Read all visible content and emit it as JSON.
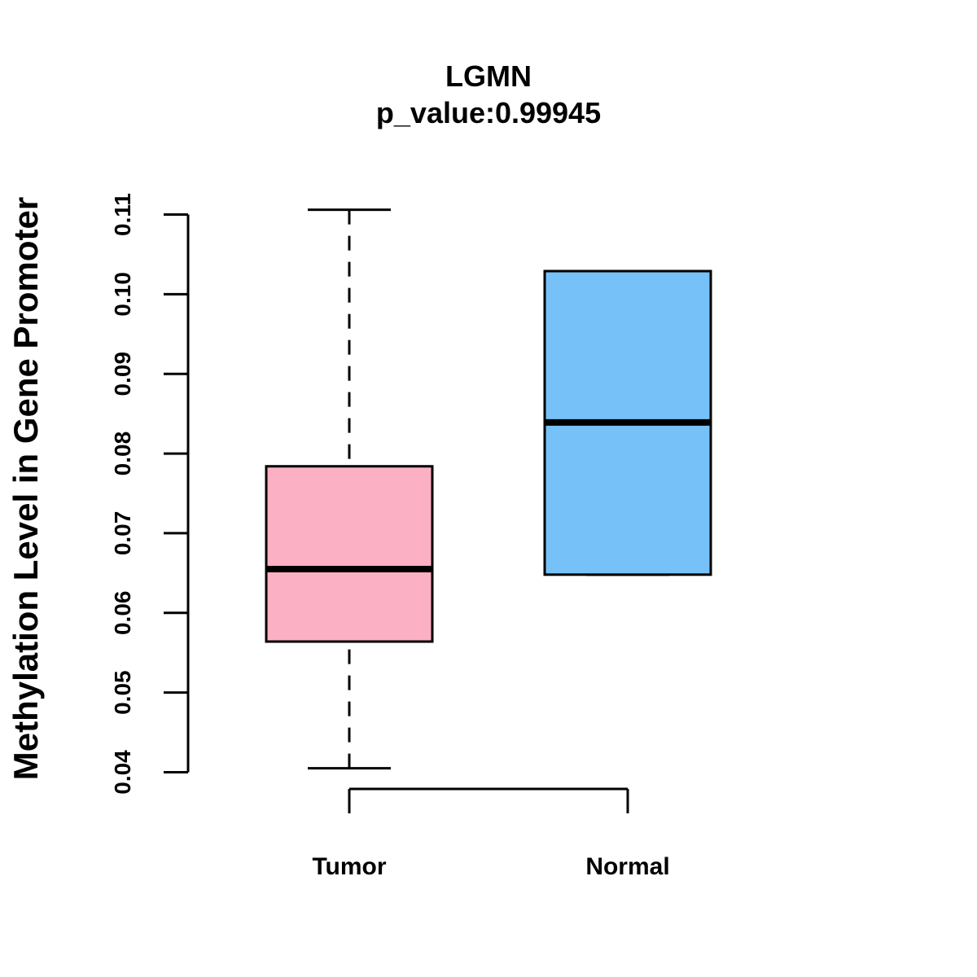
{
  "chart_data": {
    "type": "boxplot",
    "title": "LGMN",
    "subtitle": "p_value:0.99945",
    "ylabel": "Methylation Level in Gene Promoter",
    "xlabel": "",
    "ylim": [
      0.04,
      0.11
    ],
    "yticks": [
      "0.04",
      "0.05",
      "0.06",
      "0.07",
      "0.08",
      "0.09",
      "0.10",
      "0.11"
    ],
    "categories": [
      "Tumor",
      "Normal"
    ],
    "series": [
      {
        "category": "Tumor",
        "color": "#FBB0C3",
        "whisker_low": 0.0405,
        "q1": 0.0564,
        "median": 0.0655,
        "q3": 0.0784,
        "whisker_high": 0.1106
      },
      {
        "category": "Normal",
        "color": "#76C1F7",
        "whisker_low": 0.0648,
        "q1": 0.0648,
        "median": 0.0839,
        "q3": 0.1029,
        "whisker_high": 0.1029
      }
    ]
  }
}
